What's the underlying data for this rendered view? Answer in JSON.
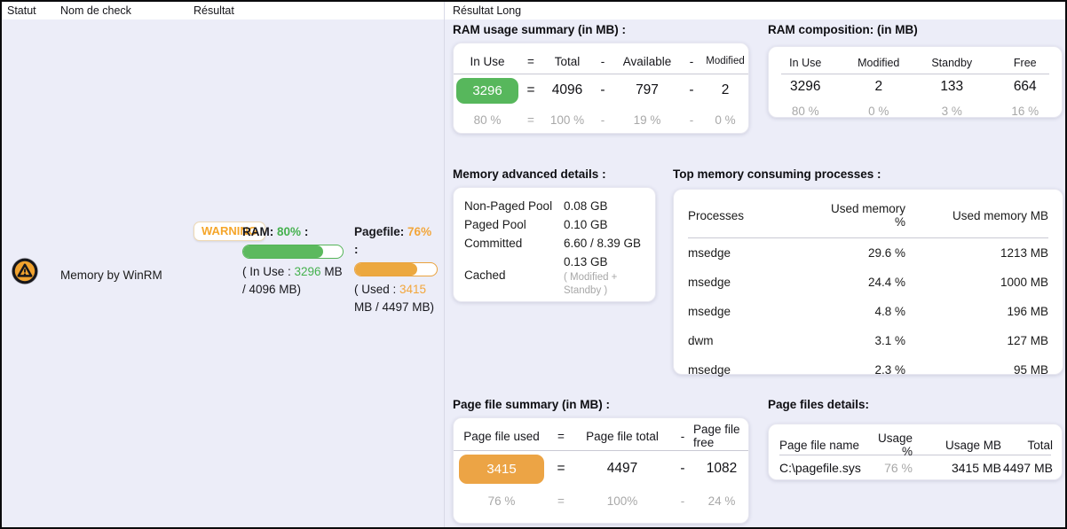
{
  "header": {
    "columns": [
      {
        "label": "Statut"
      },
      {
        "label": "Nom de check"
      },
      {
        "label": "Résultat"
      },
      {
        "label": "Résultat Long"
      }
    ]
  },
  "row": {
    "status": "warning",
    "check_name": "Memory by WinRM",
    "badge": "WARNING",
    "ram": {
      "label": "RAM:",
      "percent": "80%",
      "suffix": ":",
      "bar_value": 80,
      "detail_prefix": "( In Use :",
      "detail_value": "3296",
      "detail_suffix": "MB / 4096 MB)"
    },
    "pagefile": {
      "label": "Pagefile:",
      "percent": "76%",
      "suffix": ":",
      "bar_value": 76,
      "detail_prefix": "( Used :",
      "detail_value": "3415",
      "detail_suffix": "MB / 4497 MB)"
    }
  },
  "ram_summary": {
    "title": "RAM usage summary (in MB) :",
    "headers": [
      "In Use",
      "=",
      "Total",
      "-",
      "Available",
      "-",
      "Modified"
    ],
    "values": [
      "3296",
      "=",
      "4096",
      "-",
      "797",
      "-",
      "2"
    ],
    "percents": [
      "80 %",
      "=",
      "100 %",
      "-",
      "19 %",
      "-",
      "0 %"
    ]
  },
  "ram_composition": {
    "title": "RAM composition: (in MB)",
    "headers": [
      "In Use",
      "Modified",
      "Standby",
      "Free"
    ],
    "values": [
      "3296",
      "2",
      "133",
      "664"
    ],
    "percents": [
      "80 %",
      "0 %",
      "3 %",
      "16 %"
    ]
  },
  "memory_advanced": {
    "title": "Memory advanced details :",
    "rows": [
      {
        "label": "Non-Paged Pool",
        "value": "0.08 GB"
      },
      {
        "label": "Paged Pool",
        "value": "0.10 GB"
      },
      {
        "label": "Committed",
        "value": "6.60 / 8.39 GB"
      },
      {
        "label": "Cached",
        "value": "0.13 GB",
        "note": "( Modified + Standby )"
      }
    ]
  },
  "top_processes": {
    "title": "Top memory consuming processes :",
    "headers": [
      "Processes",
      "Used memory %",
      "Used memory MB"
    ],
    "rows": [
      {
        "name": "msedge",
        "percent": "29.6 %",
        "mb": "1213 MB"
      },
      {
        "name": "msedge",
        "percent": "24.4 %",
        "mb": "1000 MB"
      },
      {
        "name": "msedge",
        "percent": "4.8 %",
        "mb": "196 MB"
      },
      {
        "name": "dwm",
        "percent": "3.1 %",
        "mb": "127 MB"
      },
      {
        "name": "msedge",
        "percent": "2.3 %",
        "mb": "95 MB"
      }
    ]
  },
  "pagefile_summary": {
    "title": "Page file summary (in MB) :",
    "headers": [
      "Page file used",
      "=",
      "Page file total",
      "-",
      "Page file free"
    ],
    "values": [
      "3415",
      "=",
      "4497",
      "-",
      "1082"
    ],
    "percents": [
      "76 %",
      "=",
      "100%",
      "-",
      "24 %"
    ]
  },
  "pagefile_details": {
    "title": "Page files details:",
    "headers": [
      "Page file name",
      "Usage %",
      "Usage MB",
      "Total"
    ],
    "rows": [
      {
        "name": "C:\\pagefile.sys",
        "usage_percent": "76 %",
        "usage_mb": "3415 MB",
        "total": "4497 MB"
      }
    ]
  },
  "colors": {
    "ok_green": "#57b75c",
    "warning_orange": "#eca445",
    "background": "#ecedf8",
    "muted_gray": "#a8a8a8"
  }
}
